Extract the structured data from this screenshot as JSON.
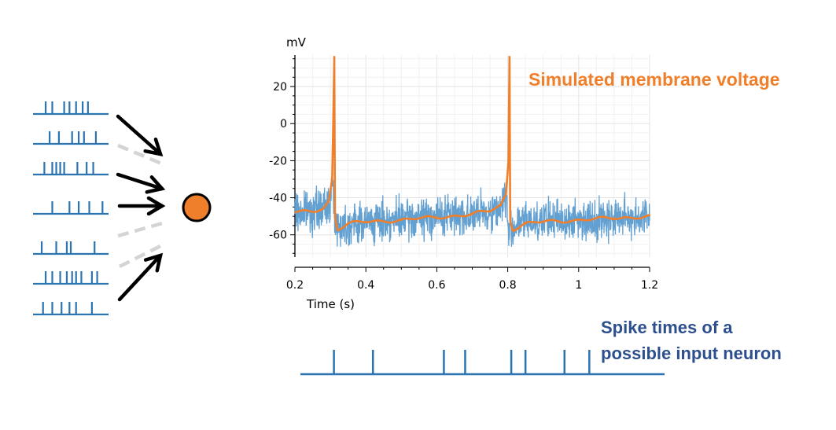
{
  "labels": {
    "voltage_title": "Simulated membrane voltage",
    "spike_title_line1": "Spike times of  a",
    "spike_title_line2": "possible input neuron"
  },
  "colors": {
    "spike_blue": "#2c74b0",
    "trace_blue": "#5b9bd0",
    "voltage_orange": "#f07f2b",
    "title_blue": "#2d4f8e",
    "arrow_black": "#000000",
    "dashed_gray": "#d4d4d4",
    "neuron_fill": "#f07f2b"
  },
  "input_trains": [
    {
      "spikes": [
        0.12,
        0.22,
        0.4,
        0.48,
        0.58,
        0.68,
        0.76
      ]
    },
    {
      "spikes": [
        0.18,
        0.32,
        0.52,
        0.62,
        0.7,
        0.88
      ]
    },
    {
      "spikes": [
        0.1,
        0.22,
        0.28,
        0.34,
        0.4,
        0.6,
        0.74,
        0.84
      ]
    },
    {
      "spikes": [
        0.22,
        0.48,
        0.62,
        0.78,
        0.98
      ]
    },
    {
      "spikes": [
        0.06,
        0.28,
        0.44,
        0.5,
        0.86
      ]
    },
    {
      "spikes": [
        0.12,
        0.22,
        0.34,
        0.44,
        0.52,
        0.58,
        0.66,
        0.82,
        0.9
      ]
    },
    {
      "spikes": [
        0.08,
        0.22,
        0.36,
        0.48,
        0.58,
        0.82
      ]
    }
  ],
  "connections": [
    {
      "type": "excitatory"
    },
    {
      "type": "silent"
    },
    {
      "type": "excitatory"
    },
    {
      "type": "excitatory"
    },
    {
      "type": "silent"
    },
    {
      "type": "silent"
    },
    {
      "type": "excitatory"
    }
  ],
  "chart_data": {
    "type": "line",
    "xlabel": "Time (s)",
    "ylabel": "mV",
    "xlim": [
      0.2,
      1.2
    ],
    "ylim": [
      -72,
      37
    ],
    "x_ticks": [
      0.2,
      0.4,
      0.6,
      0.8,
      1.0,
      1.2
    ],
    "x_tick_labels": [
      "0.2",
      "0.4",
      "0.6",
      "0.8",
      "1",
      "1.2"
    ],
    "y_ticks": [
      20,
      0,
      -20,
      -40,
      -60
    ],
    "y_tick_labels": [
      "20",
      "0",
      "-20",
      "-40",
      "-60"
    ],
    "grid": true,
    "series": [
      {
        "style": "noisy",
        "x": [
          0.2,
          0.25,
          0.28,
          0.3,
          0.306,
          0.312,
          0.32,
          0.35,
          0.4,
          0.5,
          0.6,
          0.7,
          0.75,
          0.78,
          0.795,
          0.8,
          0.805,
          0.82,
          0.85,
          0.9,
          1.0,
          1.1,
          1.2
        ],
        "y": [
          -48,
          -47,
          -46,
          -42,
          -32,
          -50,
          -56,
          -54,
          -53,
          -52,
          -50,
          -49,
          -48,
          -45,
          -38,
          -55,
          -58,
          -55,
          -53,
          -52,
          -52,
          -51,
          -50
        ]
      },
      {
        "style": "mean",
        "x": [
          0.2,
          0.25,
          0.28,
          0.295,
          0.305,
          0.308,
          0.311,
          0.313,
          0.32,
          0.35,
          0.4,
          0.5,
          0.6,
          0.7,
          0.75,
          0.78,
          0.795,
          0.802,
          0.805,
          0.807,
          0.815,
          0.85,
          0.9,
          1.0,
          1.1,
          1.2
        ],
        "y": [
          -48,
          -47.5,
          -45.5,
          -42,
          -30,
          0,
          36,
          -50,
          -57,
          -54,
          -53,
          -52,
          -50.5,
          -49,
          -47,
          -44,
          -38,
          -20,
          36,
          -52,
          -57,
          -54,
          -53,
          -52,
          -51,
          -50
        ]
      }
    ]
  },
  "output_spike_train": {
    "xlim": [
      0.2,
      1.2
    ],
    "spikes": [
      0.31,
      0.42,
      0.62,
      0.68,
      0.81,
      0.85,
      0.96,
      1.03
    ]
  }
}
